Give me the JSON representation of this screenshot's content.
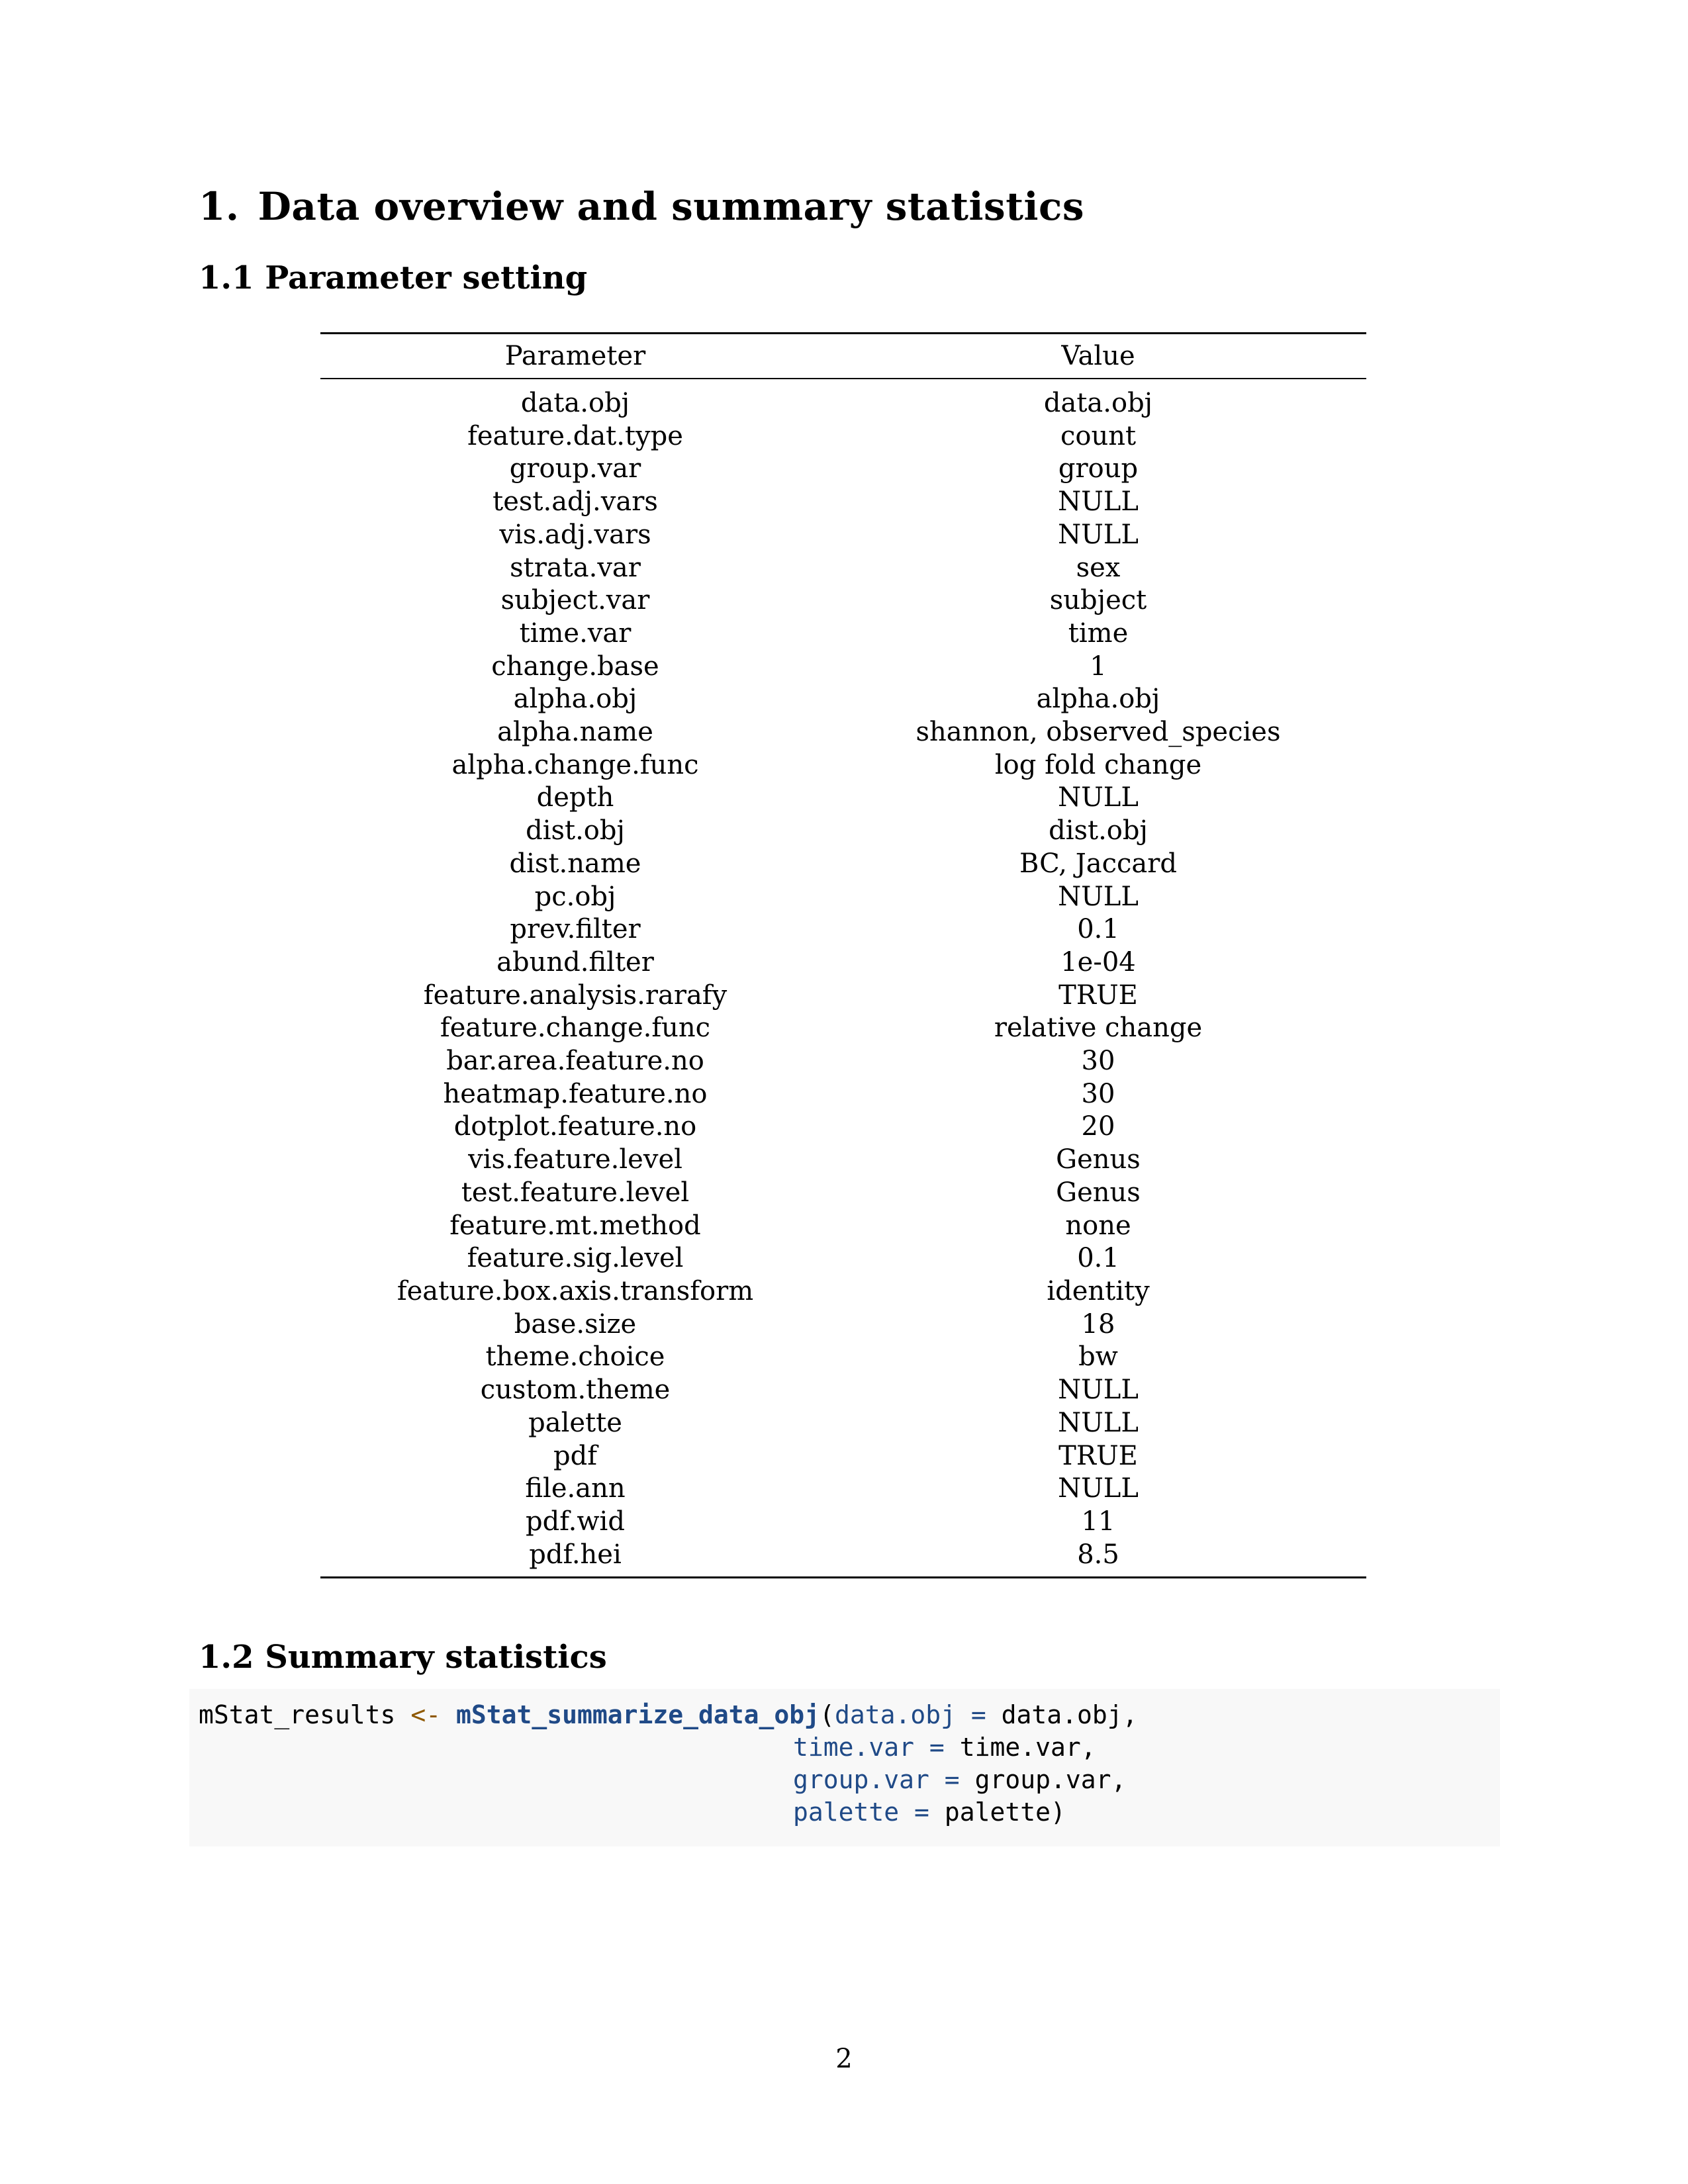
{
  "section": {
    "number": "1.",
    "title": "Data overview and summary statistics"
  },
  "subsections": {
    "params": "1.1 Parameter setting",
    "summary": "1.2 Summary statistics"
  },
  "table": {
    "headers": [
      "Parameter",
      "Value"
    ],
    "rows": [
      [
        "data.obj",
        "data.obj"
      ],
      [
        "feature.dat.type",
        "count"
      ],
      [
        "group.var",
        "group"
      ],
      [
        "test.adj.vars",
        "NULL"
      ],
      [
        "vis.adj.vars",
        "NULL"
      ],
      [
        "strata.var",
        "sex"
      ],
      [
        "subject.var",
        "subject"
      ],
      [
        "time.var",
        "time"
      ],
      [
        "change.base",
        "1"
      ],
      [
        "alpha.obj",
        "alpha.obj"
      ],
      [
        "alpha.name",
        "shannon, observed_species"
      ],
      [
        "alpha.change.func",
        "log fold change"
      ],
      [
        "depth",
        "NULL"
      ],
      [
        "dist.obj",
        "dist.obj"
      ],
      [
        "dist.name",
        "BC, Jaccard"
      ],
      [
        "pc.obj",
        "NULL"
      ],
      [
        "prev.filter",
        "0.1"
      ],
      [
        "abund.filter",
        "1e-04"
      ],
      [
        "feature.analysis.rarafy",
        "TRUE"
      ],
      [
        "feature.change.func",
        "relative change"
      ],
      [
        "bar.area.feature.no",
        "30"
      ],
      [
        "heatmap.feature.no",
        "30"
      ],
      [
        "dotplot.feature.no",
        "20"
      ],
      [
        "vis.feature.level",
        "Genus"
      ],
      [
        "test.feature.level",
        "Genus"
      ],
      [
        "feature.mt.method",
        "none"
      ],
      [
        "feature.sig.level",
        "0.1"
      ],
      [
        "feature.box.axis.transform",
        "identity"
      ],
      [
        "base.size",
        "18"
      ],
      [
        "theme.choice",
        "bw"
      ],
      [
        "custom.theme",
        "NULL"
      ],
      [
        "palette",
        "NULL"
      ],
      [
        "pdf",
        "TRUE"
      ],
      [
        "file.ann",
        "NULL"
      ],
      [
        "pdf.wid",
        "11"
      ],
      [
        "pdf.hei",
        "8.5"
      ]
    ]
  },
  "code": {
    "result_var": "mStat_results",
    "assign": "<-",
    "function": "mStat_summarize_data_obj",
    "open_paren": "(",
    "args": [
      {
        "name": "data.obj",
        "eq": "=",
        "value": "data.obj,"
      },
      {
        "name": "time.var",
        "eq": "=",
        "value": "time.var,"
      },
      {
        "name": "group.var",
        "eq": "=",
        "value": "group.var,"
      },
      {
        "name": "palette",
        "eq": "=",
        "value": "palette)"
      }
    ]
  },
  "page_number": "2"
}
